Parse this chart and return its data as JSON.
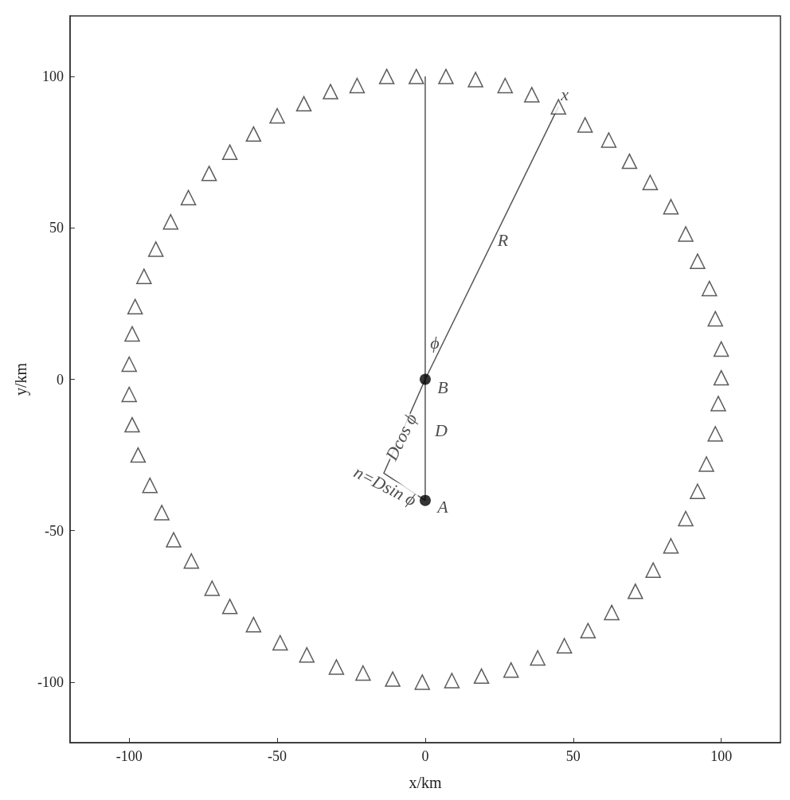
{
  "chart_data": {
    "type": "scatter",
    "xlabel": "x/km",
    "ylabel": "y/km",
    "xlim": [
      -120,
      120
    ],
    "ylim": [
      -120,
      120
    ],
    "xticks": [
      -100,
      -50,
      0,
      50,
      100
    ],
    "yticks": [
      -100,
      -50,
      0,
      50,
      100
    ],
    "grid": false,
    "series": [
      {
        "marker": "triangle",
        "color": "#333333",
        "x": [
          -21,
          -11,
          -1,
          9,
          19,
          29,
          38,
          47,
          55,
          63,
          71,
          77,
          83,
          88,
          92,
          95,
          98,
          99,
          100,
          100,
          98,
          96,
          92,
          88,
          83,
          76,
          69,
          62,
          54,
          45,
          36,
          27,
          17,
          7,
          -3,
          -13,
          -23,
          -32,
          -41,
          -50,
          -58,
          -66,
          -73,
          -80,
          -86,
          -91,
          -95,
          -98,
          -99,
          -100,
          -100,
          -99,
          -97,
          -93,
          -89,
          -85,
          -79,
          -72,
          -66,
          -58,
          -49,
          -40,
          -30
        ],
        "values": [
          -97,
          -99,
          -100,
          -99.5,
          -98,
          -96,
          -92,
          -88,
          -83,
          -77,
          -70,
          -63,
          -55,
          -46,
          -37,
          -28,
          -18,
          -8,
          0.5,
          10,
          20,
          30,
          39,
          48,
          57,
          65,
          72,
          79,
          84,
          90,
          94,
          97,
          99,
          100,
          100,
          100,
          97,
          95,
          91,
          87,
          81,
          75,
          68,
          60,
          52,
          43,
          34,
          24,
          15,
          5,
          -5,
          -15,
          -25,
          -35,
          -44,
          -53,
          -60,
          -69,
          -75,
          -81,
          -87,
          -91,
          -95
        ]
      },
      {
        "type": "line",
        "marker": "none",
        "color": "#555555",
        "x": [
          0,
          0
        ],
        "values": [
          100,
          -40
        ]
      },
      {
        "type": "line",
        "marker": "none",
        "color": "#555555",
        "x": [
          0,
          45
        ],
        "values": [
          0,
          90
        ]
      },
      {
        "type": "line",
        "marker": "none",
        "color": "#555555",
        "x": [
          0,
          -14,
          0
        ],
        "values": [
          0,
          -31,
          -40
        ]
      },
      {
        "type": "scatter",
        "marker": "circle",
        "color": "#000000",
        "x": [
          0,
          0
        ],
        "values": [
          0,
          -40
        ]
      }
    ],
    "annotations": [
      {
        "text": "x",
        "x": 45,
        "y": 90
      },
      {
        "text": "R",
        "x": 22.5,
        "y": 45
      },
      {
        "text": "ϕ",
        "x": 0,
        "y": 10
      },
      {
        "text": "B",
        "x": 0,
        "y": 0
      },
      {
        "text": "D",
        "x": 0,
        "y": -20
      },
      {
        "text": "A",
        "x": 0,
        "y": -40
      },
      {
        "text": "Dcos ϕ",
        "x": -7,
        "y": -15.5
      },
      {
        "text": "n=Dsin ϕ",
        "x": -7,
        "y": -35.5
      }
    ]
  }
}
